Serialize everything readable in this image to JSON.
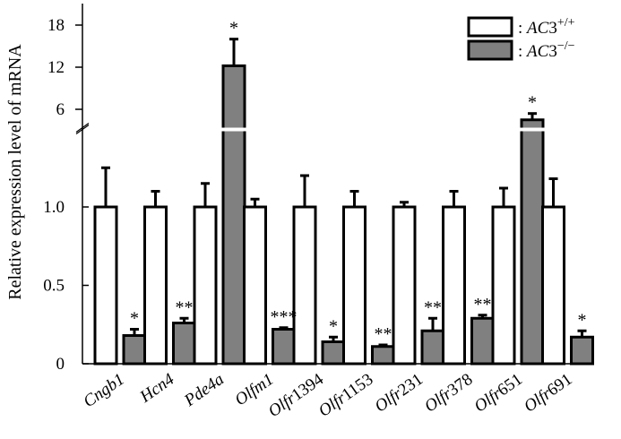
{
  "chart_data": {
    "type": "bar",
    "ylabel": "Relative expression level of mRNA",
    "categories": [
      {
        "prefix": "Cngb1",
        "suffix": ""
      },
      {
        "prefix": "Hcn4",
        "suffix": ""
      },
      {
        "prefix": "Pde4a",
        "suffix": ""
      },
      {
        "prefix": "Olfm1",
        "suffix": ""
      },
      {
        "prefix": "Olfr",
        "suffix": "1394"
      },
      {
        "prefix": "Olfr",
        "suffix": "1153"
      },
      {
        "prefix": "Olfr",
        "suffix": "231"
      },
      {
        "prefix": "Olfr",
        "suffix": "378"
      },
      {
        "prefix": "Olfr",
        "suffix": "651"
      },
      {
        "prefix": "Olfr",
        "suffix": "691"
      }
    ],
    "series": [
      {
        "legend_prefix": ": ",
        "legend_gene": "AC",
        "legend_num": "3",
        "legend_sup": "+/+",
        "color": "#ffffff",
        "values": [
          1.0,
          1.0,
          1.0,
          1.0,
          1.0,
          1.0,
          1.0,
          1.0,
          1.0,
          1.0
        ],
        "errors": [
          0.25,
          0.1,
          0.15,
          0.05,
          0.2,
          0.1,
          0.03,
          0.1,
          0.12,
          0.18
        ]
      },
      {
        "legend_prefix": ": ",
        "legend_gene": "AC",
        "legend_num": "3",
        "legend_sup": "−/−",
        "color": "#808080",
        "values": [
          0.18,
          0.26,
          12.2,
          0.22,
          0.14,
          0.11,
          0.21,
          0.29,
          4.5,
          0.17
        ],
        "errors": [
          0.04,
          0.03,
          3.8,
          0.01,
          0.03,
          0.01,
          0.08,
          0.02,
          0.9,
          0.04
        ]
      }
    ],
    "significance": [
      "*",
      "**",
      "*",
      "***",
      "*",
      "**",
      "**",
      "**",
      "*",
      "*"
    ],
    "y_axis": {
      "broken": true,
      "lower_ticks": [
        "0",
        "0.5",
        "1.0"
      ],
      "lower_tick_values": [
        0,
        0.5,
        1.0
      ],
      "lower_range": [
        0,
        1.5
      ],
      "upper_ticks": [
        "6",
        "12",
        "18"
      ],
      "upper_tick_values": [
        6,
        12,
        18
      ],
      "upper_range": [
        3,
        20
      ]
    },
    "legend_position": "top-right",
    "grid": false
  }
}
